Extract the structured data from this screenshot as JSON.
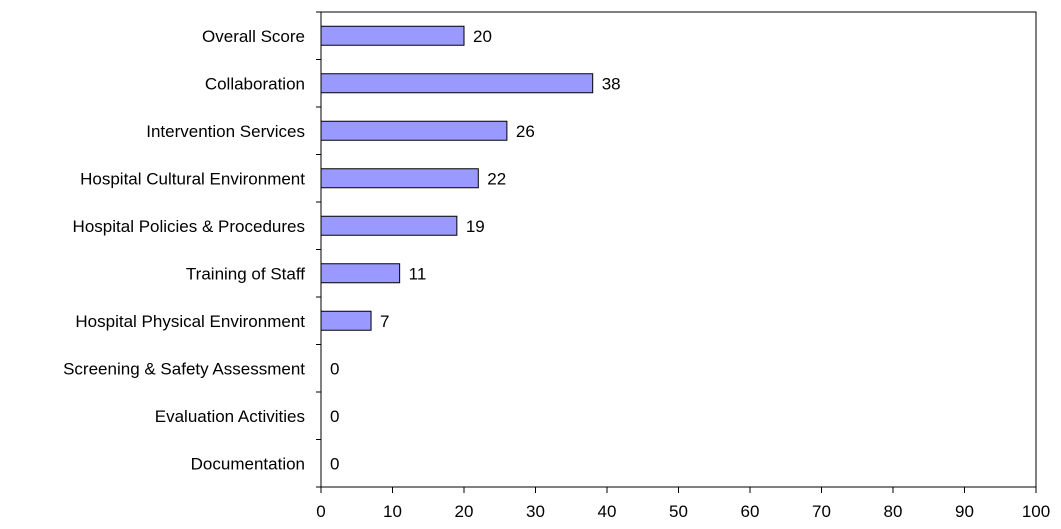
{
  "chart_data": {
    "type": "bar",
    "orientation": "horizontal",
    "categories": [
      "Overall Score",
      "Collaboration",
      "Intervention Services",
      "Hospital Cultural Environment",
      "Hospital Policies & Procedures",
      "Training of Staff",
      "Hospital Physical Environment",
      "Screening & Safety Assessment",
      "Evaluation Activities",
      "Documentation"
    ],
    "values": [
      20,
      38,
      26,
      22,
      19,
      11,
      7,
      0,
      0,
      0
    ],
    "data_labels": [
      "20",
      "38",
      "26",
      "22",
      "19",
      "11",
      "7",
      "0",
      "0",
      "0"
    ],
    "x_ticks": [
      "0",
      "10",
      "20",
      "30",
      "40",
      "50",
      "60",
      "70",
      "80",
      "90",
      "100"
    ],
    "xlim": [
      0,
      100
    ],
    "title": "",
    "xlabel": "",
    "ylabel": "",
    "grid": false,
    "bar_color": "#9999ff"
  }
}
